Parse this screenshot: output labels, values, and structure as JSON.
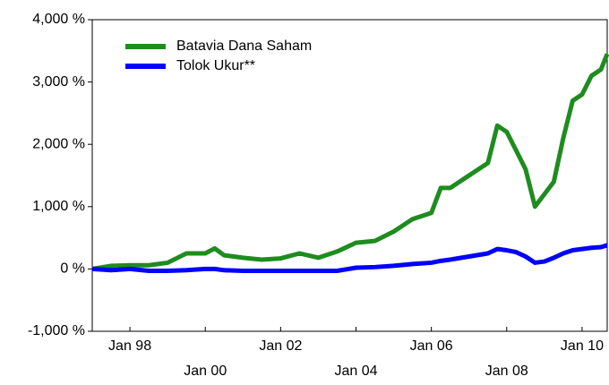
{
  "chart_data": {
    "type": "line",
    "x": [
      "1997-01",
      "1997-07",
      "1998-01",
      "1998-07",
      "1999-01",
      "1999-07",
      "2000-01",
      "2000-04",
      "2000-07",
      "2001-01",
      "2001-07",
      "2002-01",
      "2002-07",
      "2003-01",
      "2003-07",
      "2004-01",
      "2004-07",
      "2005-01",
      "2005-07",
      "2006-01",
      "2006-04",
      "2006-07",
      "2007-01",
      "2007-07",
      "2007-10",
      "2008-01",
      "2008-04",
      "2008-07",
      "2008-10",
      "2009-01",
      "2009-04",
      "2009-07",
      "2009-10",
      "2010-01",
      "2010-04",
      "2010-07",
      "2010-09"
    ],
    "series": [
      {
        "name": "Batavia Dana Saham",
        "color": "#1e8c1e",
        "values": [
          0,
          50,
          60,
          60,
          100,
          250,
          250,
          330,
          220,
          180,
          150,
          170,
          250,
          180,
          280,
          420,
          450,
          600,
          800,
          900,
          1300,
          1300,
          1500,
          1700,
          2300,
          2200,
          1900,
          1600,
          1000,
          1200,
          1400,
          2100,
          2700,
          2800,
          3100,
          3200,
          3450
        ]
      },
      {
        "name": "Tolok Ukur**",
        "color": "#0000ff",
        "values": [
          0,
          -20,
          0,
          -30,
          -30,
          -20,
          0,
          0,
          -20,
          -30,
          -30,
          -30,
          -30,
          -30,
          -30,
          20,
          30,
          50,
          80,
          100,
          130,
          150,
          200,
          250,
          320,
          300,
          270,
          200,
          100,
          120,
          180,
          250,
          300,
          320,
          340,
          350,
          380
        ]
      }
    ],
    "xlim": [
      "1997-01",
      "2010-09"
    ],
    "xticks": [
      {
        "value": "1998-01",
        "label": "Jan 98"
      },
      {
        "value": "2000-01",
        "label": "Jan 00"
      },
      {
        "value": "2002-01",
        "label": "Jan 02"
      },
      {
        "value": "2004-01",
        "label": "Jan 04"
      },
      {
        "value": "2006-01",
        "label": "Jan 06"
      },
      {
        "value": "2008-01",
        "label": "Jan 08"
      },
      {
        "value": "2010-01",
        "label": "Jan 10"
      }
    ],
    "ylim": [
      -1000,
      4000
    ],
    "yticks": [
      {
        "value": -1000,
        "label": "-1,000 %"
      },
      {
        "value": 0,
        "label": "0 %"
      },
      {
        "value": 1000,
        "label": "1,000 %"
      },
      {
        "value": 2000,
        "label": "2,000 %"
      },
      {
        "value": 3000,
        "label": "3,000 %"
      },
      {
        "value": 4000,
        "label": "4,000 %"
      }
    ],
    "legend": "upper left"
  }
}
